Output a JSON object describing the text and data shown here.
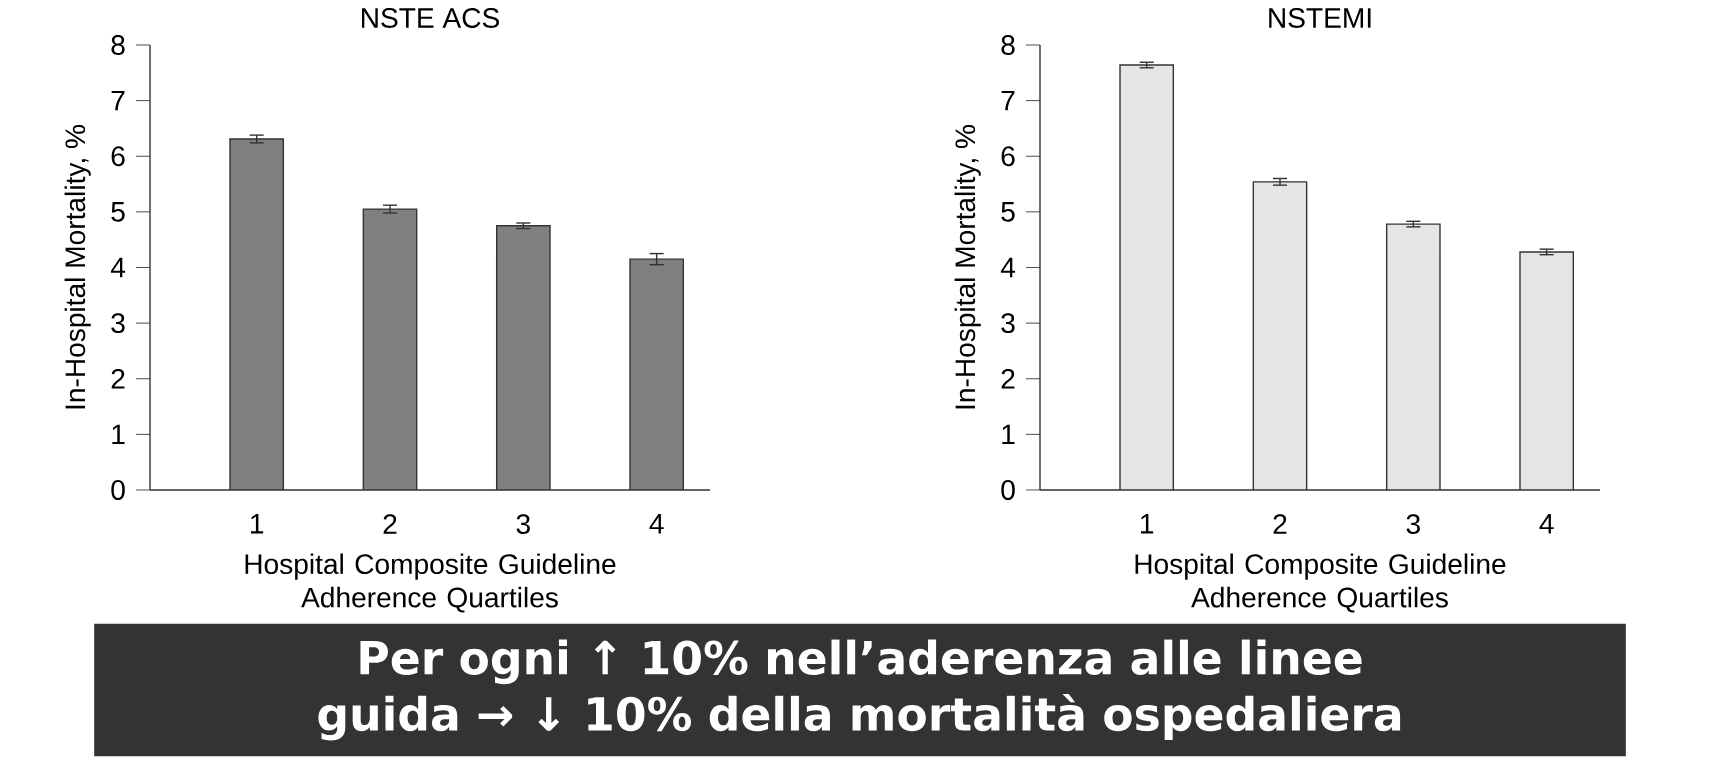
{
  "chart_data": [
    {
      "type": "bar",
      "title": "NSTE ACS",
      "ylabel": "In-Hospital Mortality, %",
      "xlabel": "Hospital Composite Guideline Adherence Quartiles",
      "categories": [
        "1",
        "2",
        "3",
        "4"
      ],
      "values": [
        6.31,
        5.05,
        4.75,
        4.15
      ],
      "errors": [
        0.07,
        0.07,
        0.05,
        0.1
      ],
      "color": "#7f8082",
      "ylim": [
        0,
        8
      ],
      "yticks": [
        0,
        1,
        2,
        3,
        4,
        5,
        6,
        7,
        8
      ],
      "annotations": [
        "Per ogni ↑ 10% nell’aderenza alle linee guida → ↓ 10% della mortalità ospedaliera"
      ]
    },
    {
      "type": "bar",
      "title": "NSTEMI",
      "ylabel": "In-Hospital Mortality, %",
      "xlabel": "Hospital Composite Guideline Adherence Quartiles",
      "categories": [
        "1",
        "2",
        "3",
        "4"
      ],
      "values": [
        7.64,
        5.54,
        4.78,
        4.28
      ],
      "errors": [
        0.05,
        0.06,
        0.05,
        0.05
      ],
      "color": "#e4e5e7",
      "ylim": [
        0,
        8
      ],
      "yticks": [
        0,
        1,
        2,
        3,
        4,
        5,
        6,
        7,
        8
      ]
    }
  ]
}
